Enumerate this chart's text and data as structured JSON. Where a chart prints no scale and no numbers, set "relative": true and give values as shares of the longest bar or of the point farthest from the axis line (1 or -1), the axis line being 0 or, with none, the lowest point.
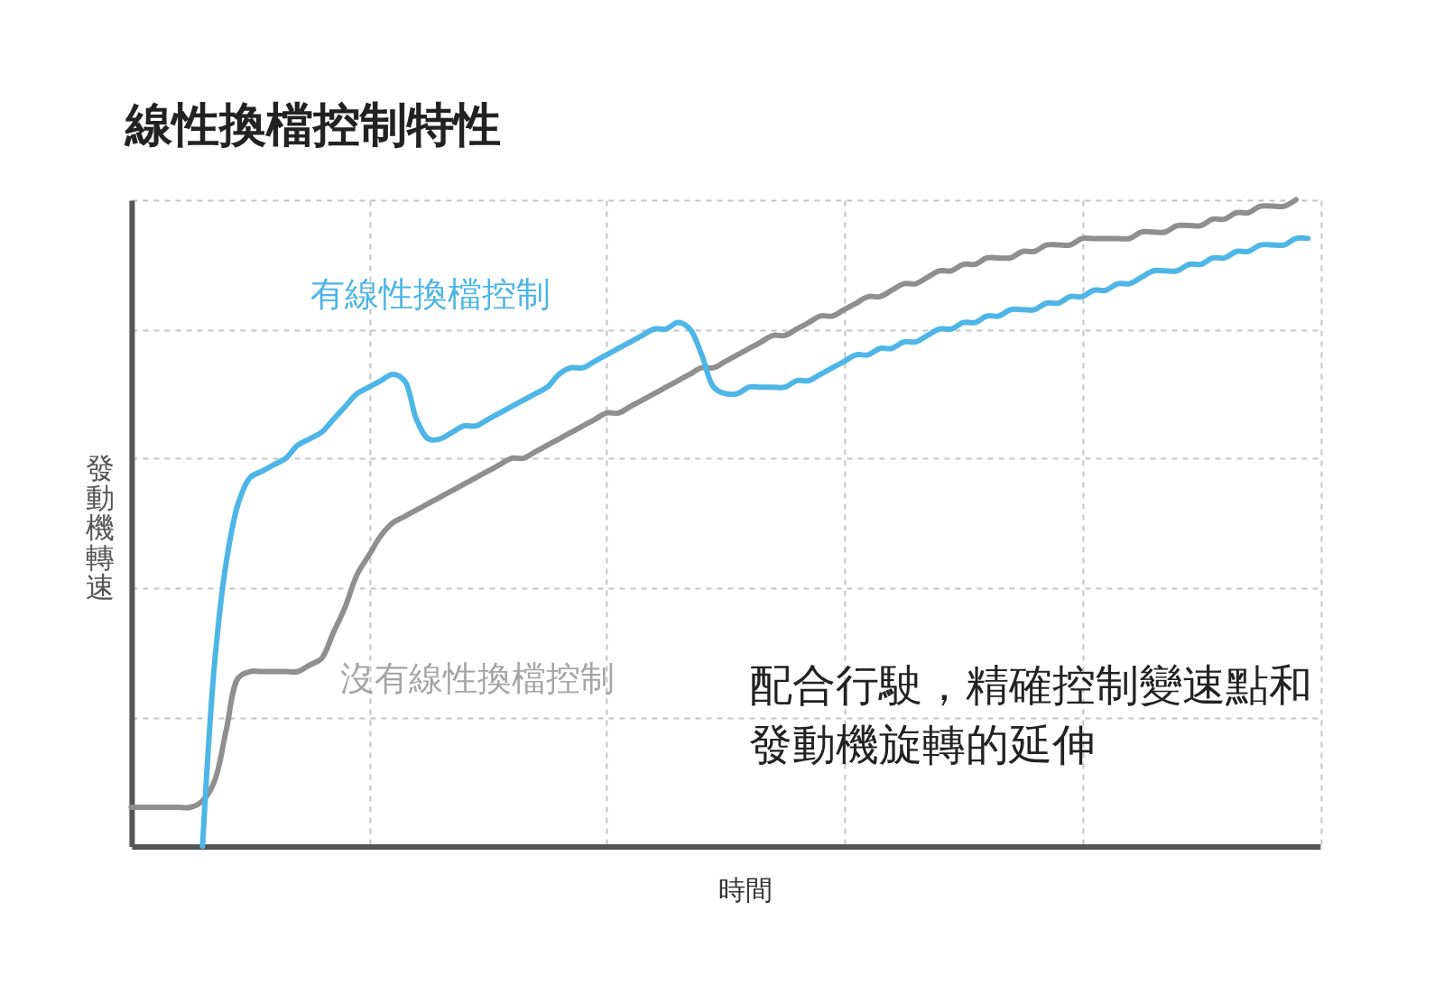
{
  "chart_data": {
    "type": "line",
    "title": "線性換檔控制特性",
    "xlabel": "時間",
    "ylabel": "發動機轉速",
    "relative": true,
    "grid": true,
    "categories": [
      null,
      null,
      null,
      null,
      null,
      null,
      null,
      null,
      null,
      null,
      null,
      null,
      null,
      null,
      null,
      null,
      null,
      null,
      null,
      null,
      null,
      null,
      null,
      null,
      null,
      null,
      null,
      null,
      null,
      null,
      null,
      null,
      null,
      null,
      null,
      null,
      null,
      null,
      null,
      null,
      null,
      null,
      null,
      null,
      null,
      null,
      null,
      null,
      null,
      null,
      null,
      null,
      null,
      null,
      null,
      null,
      null,
      null,
      null,
      null,
      null,
      null,
      null,
      null,
      null,
      null,
      null,
      null,
      null,
      null,
      null,
      null,
      null,
      null,
      null,
      null,
      null,
      null,
      null,
      null,
      null,
      null,
      null,
      null,
      null,
      null,
      null,
      null,
      null,
      null,
      null,
      null,
      null,
      null,
      null,
      null,
      null,
      null,
      null,
      null,
      null
    ],
    "series": [
      {
        "name": "有線性換檔控制",
        "color": "#4db6e6",
        "values": [
          null,
          null,
          null,
          null,
          null,
          null,
          0.0,
          0.28,
          0.44,
          0.53,
          0.57,
          0.58,
          0.59,
          0.6,
          0.62,
          0.63,
          0.64,
          0.66,
          0.68,
          0.7,
          0.71,
          0.72,
          0.73,
          0.72,
          0.66,
          0.63,
          0.63,
          0.64,
          0.65,
          0.65,
          0.66,
          0.67,
          0.68,
          0.69,
          0.7,
          0.71,
          0.73,
          0.74,
          0.74,
          0.75,
          0.76,
          0.77,
          0.78,
          0.79,
          0.8,
          0.8,
          0.81,
          0.8,
          0.76,
          0.71,
          0.7,
          0.7,
          0.71,
          0.71,
          0.71,
          0.71,
          0.72,
          0.72,
          0.73,
          0.74,
          0.75,
          0.76,
          0.76,
          0.77,
          0.77,
          0.78,
          0.78,
          0.79,
          0.8,
          0.8,
          0.81,
          0.81,
          0.82,
          0.82,
          0.83,
          0.83,
          0.83,
          0.84,
          0.84,
          0.85,
          0.85,
          0.86,
          0.86,
          0.87,
          0.87,
          0.88,
          0.89,
          0.89,
          0.89,
          0.9,
          0.9,
          0.91,
          0.91,
          0.92,
          0.92,
          0.93,
          0.93,
          0.93,
          0.94,
          0.94,
          null
        ]
      },
      {
        "name": "沒有線性換檔控制",
        "color": "#8f8f8f",
        "values": [
          0.06,
          0.06,
          0.06,
          0.06,
          0.06,
          0.06,
          0.07,
          0.1,
          0.18,
          0.26,
          0.27,
          0.27,
          0.27,
          0.27,
          0.27,
          0.28,
          0.29,
          0.33,
          0.37,
          0.42,
          0.45,
          0.48,
          0.5,
          0.51,
          0.52,
          0.53,
          0.54,
          0.55,
          0.56,
          0.57,
          0.58,
          0.59,
          0.6,
          0.6,
          0.61,
          0.62,
          0.63,
          0.64,
          0.65,
          0.66,
          0.67,
          0.67,
          0.68,
          0.69,
          0.7,
          0.71,
          0.72,
          0.73,
          0.74,
          0.74,
          0.75,
          0.76,
          0.77,
          0.78,
          0.79,
          0.79,
          0.8,
          0.81,
          0.82,
          0.82,
          0.83,
          0.84,
          0.85,
          0.85,
          0.86,
          0.87,
          0.87,
          0.88,
          0.89,
          0.89,
          0.9,
          0.9,
          0.91,
          0.91,
          0.91,
          0.92,
          0.92,
          0.93,
          0.93,
          0.93,
          0.94,
          0.94,
          0.94,
          0.94,
          0.94,
          0.95,
          0.95,
          0.95,
          0.96,
          0.96,
          0.96,
          0.97,
          0.97,
          0.98,
          0.98,
          0.99,
          0.99,
          0.99,
          1.0,
          null,
          null
        ]
      }
    ],
    "annotations": [
      "配合行駛，精確控制變速點和",
      "發動機旋轉的延伸"
    ]
  }
}
